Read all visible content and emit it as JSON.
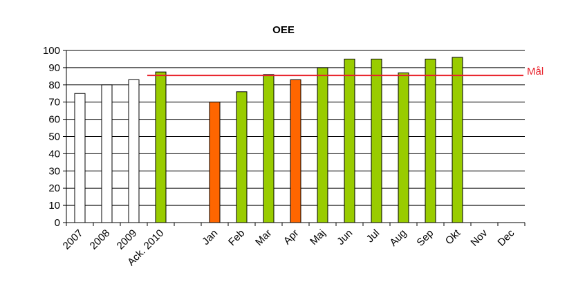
{
  "chart_data": {
    "type": "bar",
    "title": "OEE",
    "xlabel": "",
    "ylabel": "",
    "ylim": [
      0,
      100
    ],
    "yticks": [
      0,
      10,
      20,
      30,
      40,
      50,
      60,
      70,
      80,
      90,
      100
    ],
    "grid": true,
    "categories": [
      "2007",
      "2008",
      "2009",
      "Ack. 2010",
      "",
      "Jan",
      "Feb",
      "Mar",
      "Apr",
      "Maj",
      "Jun",
      "Jul",
      "Aug",
      "Sep",
      "Okt",
      "Nov",
      "Dec"
    ],
    "values": [
      75,
      80,
      83,
      87.5,
      null,
      70,
      76,
      86,
      83,
      90,
      95,
      95,
      87,
      95,
      96,
      null,
      null
    ],
    "bar_colors": [
      "#ffffff",
      "#ffffff",
      "#ffffff",
      "#99cc00",
      null,
      "#ff6600",
      "#99cc00",
      "#99cc00",
      "#ff6600",
      "#99cc00",
      "#99cc00",
      "#99cc00",
      "#99cc00",
      "#99cc00",
      "#99cc00",
      null,
      null
    ],
    "reference_line": {
      "label": "Mål",
      "value": 85.5,
      "color": "#e8202a"
    }
  }
}
